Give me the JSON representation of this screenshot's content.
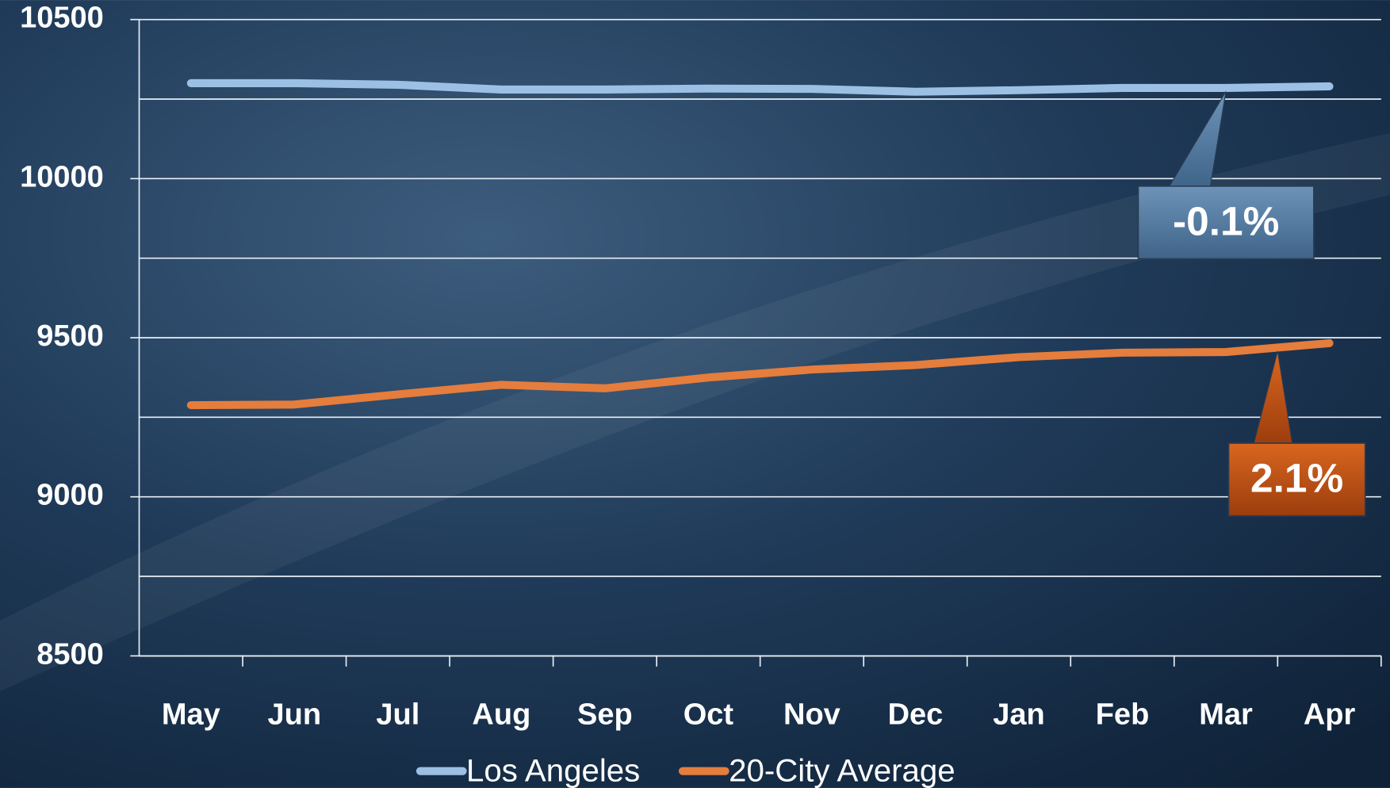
{
  "chart_data": {
    "type": "line",
    "categories": [
      "May",
      "Jun",
      "Jul",
      "Aug",
      "Sep",
      "Oct",
      "Nov",
      "Dec",
      "Jan",
      "Feb",
      "Mar",
      "Apr"
    ],
    "series": [
      {
        "name": "Los Angeles",
        "color": "#9cc0e4",
        "annotation": "-0.1%",
        "values": [
          10300,
          10300,
          10295,
          10280,
          10280,
          10283,
          10282,
          10273,
          10278,
          10285,
          10285,
          10290
        ]
      },
      {
        "name": "20-City Average",
        "color": "#e57d3c",
        "annotation": "2.1%",
        "values": [
          9288,
          9290,
          9322,
          9352,
          9341,
          9375,
          9400,
          9414,
          9439,
          9453,
          9455,
          9483
        ]
      }
    ],
    "ylim": [
      8500,
      10500
    ],
    "yticks": [
      8500,
      9000,
      9500,
      10000,
      10500
    ],
    "minor_yticks": [
      8750,
      9250,
      9750,
      10250
    ],
    "grid": true,
    "legend": "bottom"
  }
}
